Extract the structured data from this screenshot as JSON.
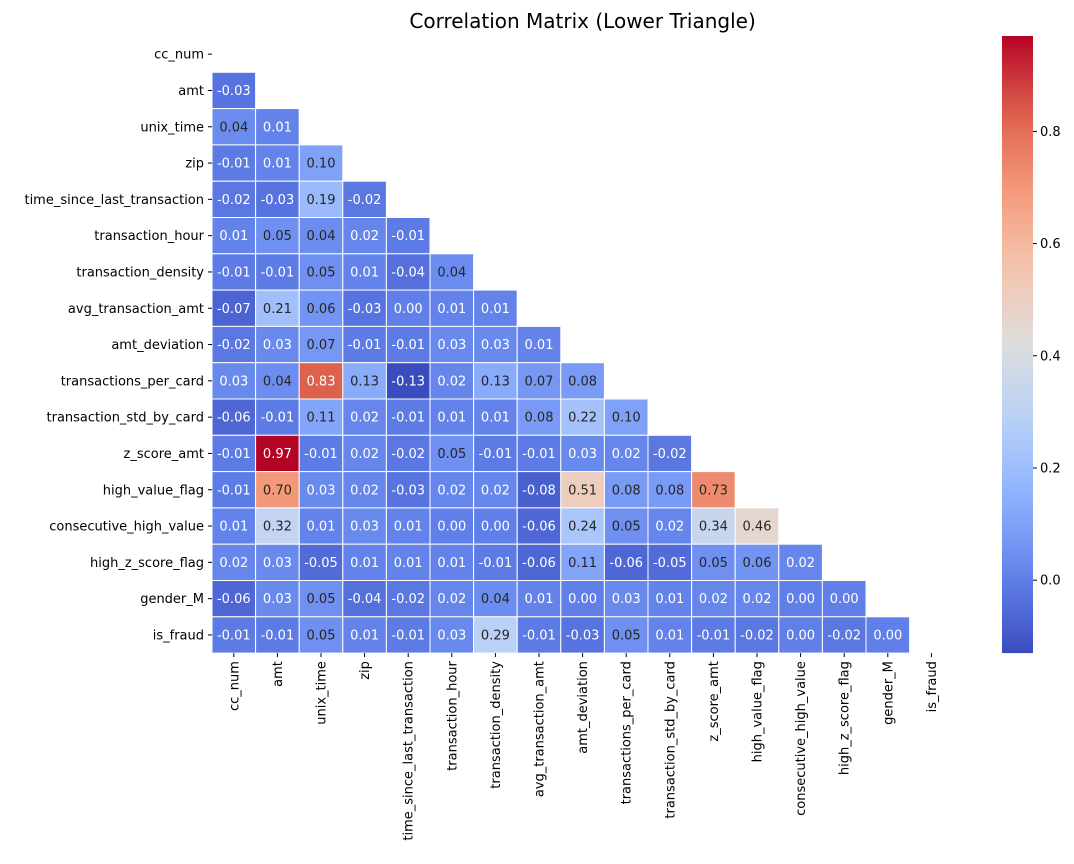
{
  "chart_data": {
    "type": "heatmap",
    "title": "Correlation Matrix (Lower Triangle)",
    "xlabel": "",
    "ylabel": "",
    "labels": [
      "cc_num",
      "amt",
      "unix_time",
      "zip",
      "time_since_last_transaction",
      "transaction_hour",
      "transaction_density",
      "avg_transaction_amt",
      "amt_deviation",
      "transactions_per_card",
      "transaction_std_by_card",
      "z_score_amt",
      "high_value_flag",
      "consecutive_high_value",
      "high_z_score_flag",
      "gender_M",
      "is_fraud"
    ],
    "lower_triangle": [
      [],
      [
        -0.03
      ],
      [
        0.04,
        0.01
      ],
      [
        -0.01,
        0.01,
        0.1
      ],
      [
        -0.02,
        -0.03,
        0.19,
        -0.02
      ],
      [
        0.01,
        0.05,
        0.04,
        0.02,
        -0.01
      ],
      [
        -0.01,
        -0.01,
        0.05,
        0.01,
        -0.04,
        0.04
      ],
      [
        -0.07,
        0.21,
        0.06,
        -0.03,
        -0.0,
        0.01,
        0.01
      ],
      [
        -0.02,
        0.03,
        0.07,
        -0.01,
        -0.01,
        0.03,
        0.03,
        0.01
      ],
      [
        0.03,
        0.04,
        0.83,
        0.13,
        -0.13,
        0.02,
        0.13,
        0.07,
        0.08
      ],
      [
        -0.06,
        -0.01,
        0.11,
        0.02,
        -0.01,
        0.01,
        0.01,
        0.08,
        0.22,
        0.1
      ],
      [
        -0.01,
        0.97,
        -0.01,
        0.02,
        -0.02,
        0.05,
        -0.01,
        -0.01,
        0.03,
        0.02,
        -0.02
      ],
      [
        -0.01,
        0.7,
        0.03,
        0.02,
        -0.03,
        0.02,
        0.02,
        -0.08,
        0.51,
        0.08,
        0.08,
        0.73
      ],
      [
        0.01,
        0.32,
        0.01,
        0.03,
        0.01,
        -0.0,
        -0.0,
        -0.06,
        0.24,
        0.05,
        0.02,
        0.34,
        0.46
      ],
      [
        0.02,
        0.03,
        -0.05,
        0.01,
        0.01,
        0.01,
        -0.01,
        -0.06,
        0.11,
        -0.06,
        -0.05,
        0.05,
        0.06,
        0.02
      ],
      [
        -0.06,
        0.03,
        0.05,
        -0.04,
        -0.02,
        0.02,
        0.04,
        0.01,
        -0.0,
        0.03,
        0.01,
        0.02,
        0.02,
        0.0,
        0.0
      ],
      [
        -0.01,
        -0.01,
        0.05,
        0.01,
        -0.01,
        0.03,
        0.29,
        -0.01,
        -0.03,
        0.05,
        0.01,
        -0.01,
        -0.02,
        -0.0,
        -0.02,
        -0.0
      ]
    ],
    "value_format": "2 decimals",
    "colormap": "coolwarm",
    "color_range": [
      -0.13,
      0.97
    ],
    "colorbar_ticks": [
      0.0,
      0.2,
      0.4,
      0.6,
      0.8
    ],
    "colorbar_tick_labels": [
      "0.0",
      "0.2",
      "0.4",
      "0.6",
      "0.8"
    ],
    "grid_lines": "white",
    "legend": "colorbar-right"
  }
}
